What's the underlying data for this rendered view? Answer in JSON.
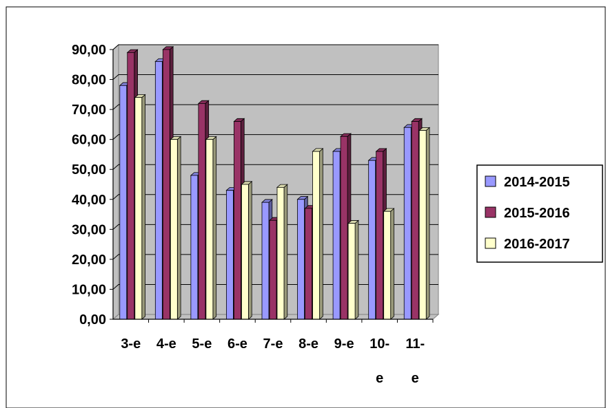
{
  "chart_data": {
    "type": "bar",
    "categories": [
      "3-e",
      "4-e",
      "5-e",
      "6-e",
      "7-e",
      "8-e",
      "9-e",
      "10-e",
      "11-e"
    ],
    "series": [
      {
        "name": "2014-2015",
        "values": [
          78,
          86,
          48,
          43,
          39,
          40,
          56,
          53,
          64
        ],
        "color": "#9999ff"
      },
      {
        "name": "2015-2016",
        "values": [
          89,
          90,
          72,
          66,
          33,
          37,
          61,
          56,
          66
        ],
        "color": "#993366"
      },
      {
        "name": "2016-2017",
        "values": [
          74,
          60,
          60,
          45,
          44,
          56,
          32,
          36,
          63
        ],
        "color": "#ffffcc"
      }
    ],
    "y_ticks": [
      "0,00",
      "10,00",
      "20,00",
      "30,00",
      "40,00",
      "50,00",
      "60,00",
      "70,00",
      "80,00",
      "90,00"
    ],
    "ylim": [
      0,
      90
    ],
    "grid": true,
    "plot_background": "#c0c0c0",
    "legend_position": "right"
  }
}
